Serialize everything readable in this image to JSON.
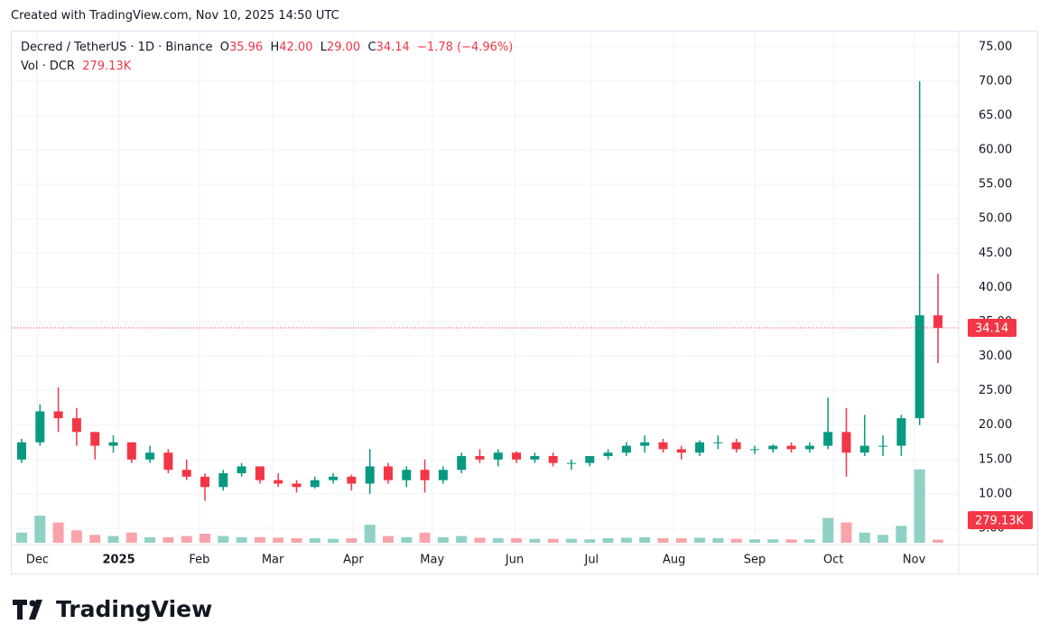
{
  "created_text": "Created with TradingView.com, Nov 10, 2025 14:50 UTC",
  "brand": "TradingView",
  "chart_data": {
    "type": "candlestick",
    "symbol": "Decred / TetherUS · 1D · Binance",
    "ohlc_legend": {
      "O": "O",
      "open": "35.96",
      "H": "H",
      "high": "42.00",
      "L": "L",
      "low": "29.00",
      "C": "C",
      "close": "34.14",
      "change": "−1.78 (−4.96%)"
    },
    "volume_title": "Vol · DCR",
    "volume_label": "279.13K",
    "last_price_label": "34.14",
    "up_color": "#089981",
    "down_color": "#f23645",
    "open": [
      15,
      17.5,
      22,
      21,
      19,
      17,
      17.5,
      15,
      16,
      13.5,
      12.5,
      11,
      13,
      14,
      12,
      11.5,
      11,
      12,
      12.5,
      11.5,
      14,
      12,
      13.5,
      12,
      13.5,
      15.5,
      15,
      16,
      15,
      15.5,
      14.5,
      14.5,
      15.5,
      16,
      17,
      17.5,
      16.5,
      16,
      17.5,
      17.5,
      16.5,
      16.5,
      17,
      16.5,
      17,
      19,
      16,
      17,
      17,
      21,
      35.96
    ],
    "high": [
      18,
      23,
      25.5,
      22.5,
      19,
      18.5,
      17.5,
      17,
      16.5,
      15,
      13,
      13.5,
      14.5,
      14,
      13,
      12,
      12.5,
      13,
      12.8,
      16.5,
      14.5,
      14,
      15,
      14,
      16,
      16.5,
      16.5,
      16.2,
      16,
      16,
      15,
      15.5,
      16.5,
      17.5,
      18.5,
      18,
      17,
      17.8,
      18.5,
      18,
      17,
      17.2,
      17.5,
      17.5,
      24,
      22.5,
      21.5,
      18.5,
      21.5,
      70,
      42
    ],
    "low": [
      14.5,
      17,
      19,
      17,
      15,
      16,
      14.5,
      14.5,
      13,
      12,
      9,
      10.5,
      12.5,
      11.5,
      11,
      10.2,
      10.8,
      11.5,
      10.5,
      10,
      11.5,
      11,
      10.2,
      11.5,
      13,
      14.5,
      14,
      14.5,
      14.5,
      14,
      13.5,
      14,
      15,
      15.5,
      16,
      16,
      15,
      15.5,
      16.5,
      16,
      15.8,
      16,
      16,
      16,
      16.5,
      12.5,
      15.5,
      15.5,
      15.5,
      20,
      29
    ],
    "close": [
      17.5,
      22,
      21,
      19,
      17,
      17.5,
      15,
      16,
      13.5,
      12.5,
      11,
      13,
      14,
      12,
      11.5,
      11,
      12,
      12.5,
      11.5,
      14,
      12,
      13.5,
      12,
      13.5,
      15.5,
      15,
      16,
      15,
      15.5,
      14.5,
      14.5,
      15.5,
      16,
      17,
      17.5,
      16.5,
      16,
      17.5,
      17.5,
      16.5,
      16.5,
      17,
      16.5,
      17,
      19,
      16,
      17,
      17,
      21,
      35.96,
      34.14
    ],
    "volume": [
      900,
      2400,
      1800,
      1100,
      700,
      600,
      900,
      500,
      500,
      600,
      800,
      600,
      500,
      500,
      450,
      400,
      400,
      350,
      400,
      1600,
      600,
      500,
      900,
      500,
      600,
      450,
      400,
      400,
      350,
      350,
      350,
      300,
      400,
      450,
      500,
      400,
      400,
      450,
      400,
      350,
      300,
      300,
      300,
      300,
      2200,
      1800,
      900,
      700,
      1500,
      6500,
      279.13
    ],
    "volume_lim": [
      0,
      8000
    ],
    "ylim": [
      2.9,
      77.2
    ],
    "yticks": [
      {
        "value": 5,
        "label": "5.00"
      },
      {
        "value": 10,
        "label": "10.00"
      },
      {
        "value": 15,
        "label": "15.00"
      },
      {
        "value": 20,
        "label": "20.00"
      },
      {
        "value": 25,
        "label": "25.00"
      },
      {
        "value": 30,
        "label": "30.00"
      },
      {
        "value": 35,
        "label": "35.00"
      },
      {
        "value": 40,
        "label": "40.00"
      },
      {
        "value": 45,
        "label": "45.00"
      },
      {
        "value": 50,
        "label": "50.00"
      },
      {
        "value": 55,
        "label": "55.00"
      },
      {
        "value": 60,
        "label": "60.00"
      },
      {
        "value": 65,
        "label": "65.00"
      },
      {
        "value": 70,
        "label": "70.00"
      },
      {
        "value": 75,
        "label": "75.00"
      }
    ],
    "xticks": [
      {
        "value": 0.86,
        "label": "Dec"
      },
      {
        "value": 5.3,
        "label": "2025"
      },
      {
        "value": 9.7,
        "label": "Feb"
      },
      {
        "value": 13.7,
        "label": "Mar"
      },
      {
        "value": 18.1,
        "label": "Apr"
      },
      {
        "value": 22.4,
        "label": "May"
      },
      {
        "value": 26.9,
        "label": "Jun"
      },
      {
        "value": 31.1,
        "label": "Jul"
      },
      {
        "value": 35.6,
        "label": "Aug"
      },
      {
        "value": 40,
        "label": "Sep"
      },
      {
        "value": 44.3,
        "label": "Oct"
      },
      {
        "value": 48.7,
        "label": "Nov"
      }
    ],
    "grid": true
  }
}
